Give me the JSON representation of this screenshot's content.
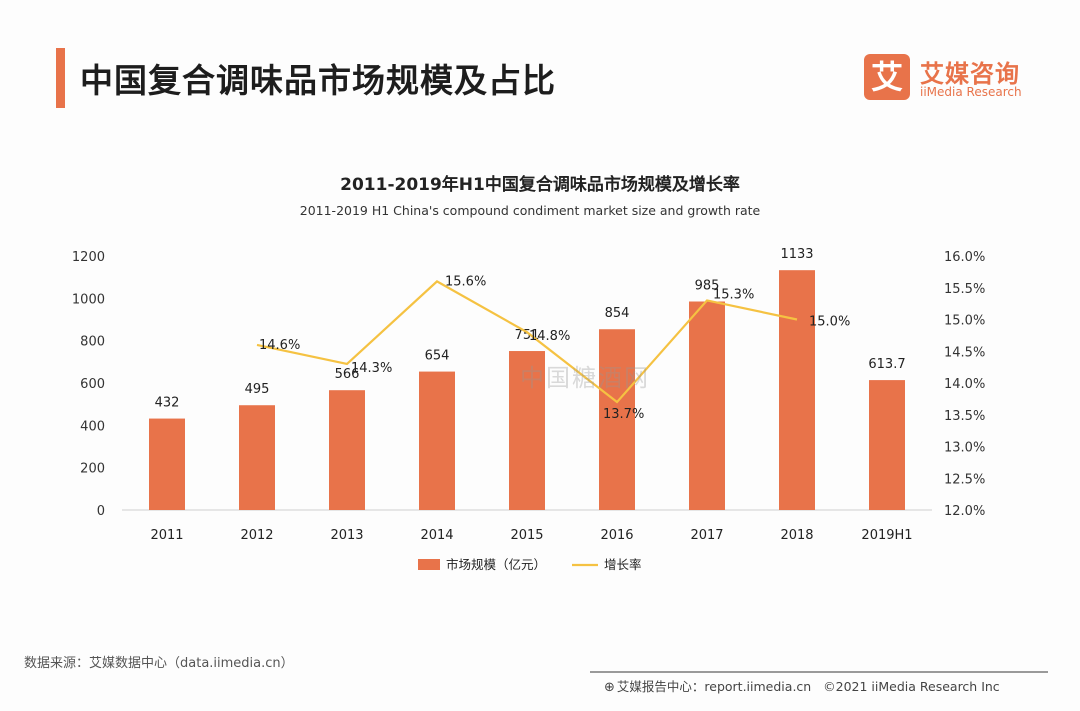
{
  "header": {
    "title": "中国复合调味品市场规模及占比",
    "logo_cn": "艾媒咨询",
    "logo_en": "iiMedia Research",
    "logo_mark": "艾"
  },
  "watermark": "中国糖酒网",
  "chart_data": {
    "type": "bar",
    "title": "2011-2019年H1中国复合调味品市场规模及增长率",
    "subtitle": "2011-2019 H1 China's compound condiment market size and growth rate",
    "categories": [
      "2011",
      "2012",
      "2013",
      "2014",
      "2015",
      "2016",
      "2017",
      "2018",
      "2019H1"
    ],
    "y_left": {
      "ylim": [
        0,
        1200
      ],
      "ticks": [
        0,
        200,
        400,
        600,
        800,
        1000,
        1200
      ]
    },
    "y_right": {
      "ylim": [
        12.0,
        16.0
      ],
      "ticks": [
        "12.0%",
        "12.5%",
        "13.0%",
        "13.5%",
        "14.0%",
        "14.5%",
        "15.0%",
        "15.5%",
        "16.0%"
      ]
    },
    "series": [
      {
        "name": "市场规模（亿元）",
        "type": "bar",
        "axis": "left",
        "color": "#e8734a",
        "values": [
          432,
          495,
          566,
          654,
          751,
          854,
          985,
          1133,
          613.7
        ],
        "labels": [
          "432",
          "495",
          "566",
          "654",
          "751",
          "854",
          "985",
          "1133",
          "613.7"
        ]
      },
      {
        "name": "增长率",
        "type": "line",
        "axis": "right",
        "color": "#f5c242",
        "values": [
          null,
          14.6,
          14.3,
          15.6,
          14.8,
          13.7,
          15.3,
          15.0,
          null
        ],
        "labels": [
          null,
          "14.6%",
          "14.3%",
          "15.6%",
          "14.8%",
          "13.7%",
          "15.3%",
          "15.0%",
          null
        ]
      }
    ],
    "legend": "bottom-center"
  },
  "footer": {
    "source": "数据来源：艾媒数据中心（data.iimedia.cn）",
    "report": "艾媒报告中心：report.iimedia.cn",
    "copyright": "©2021  iiMedia Research  Inc"
  }
}
